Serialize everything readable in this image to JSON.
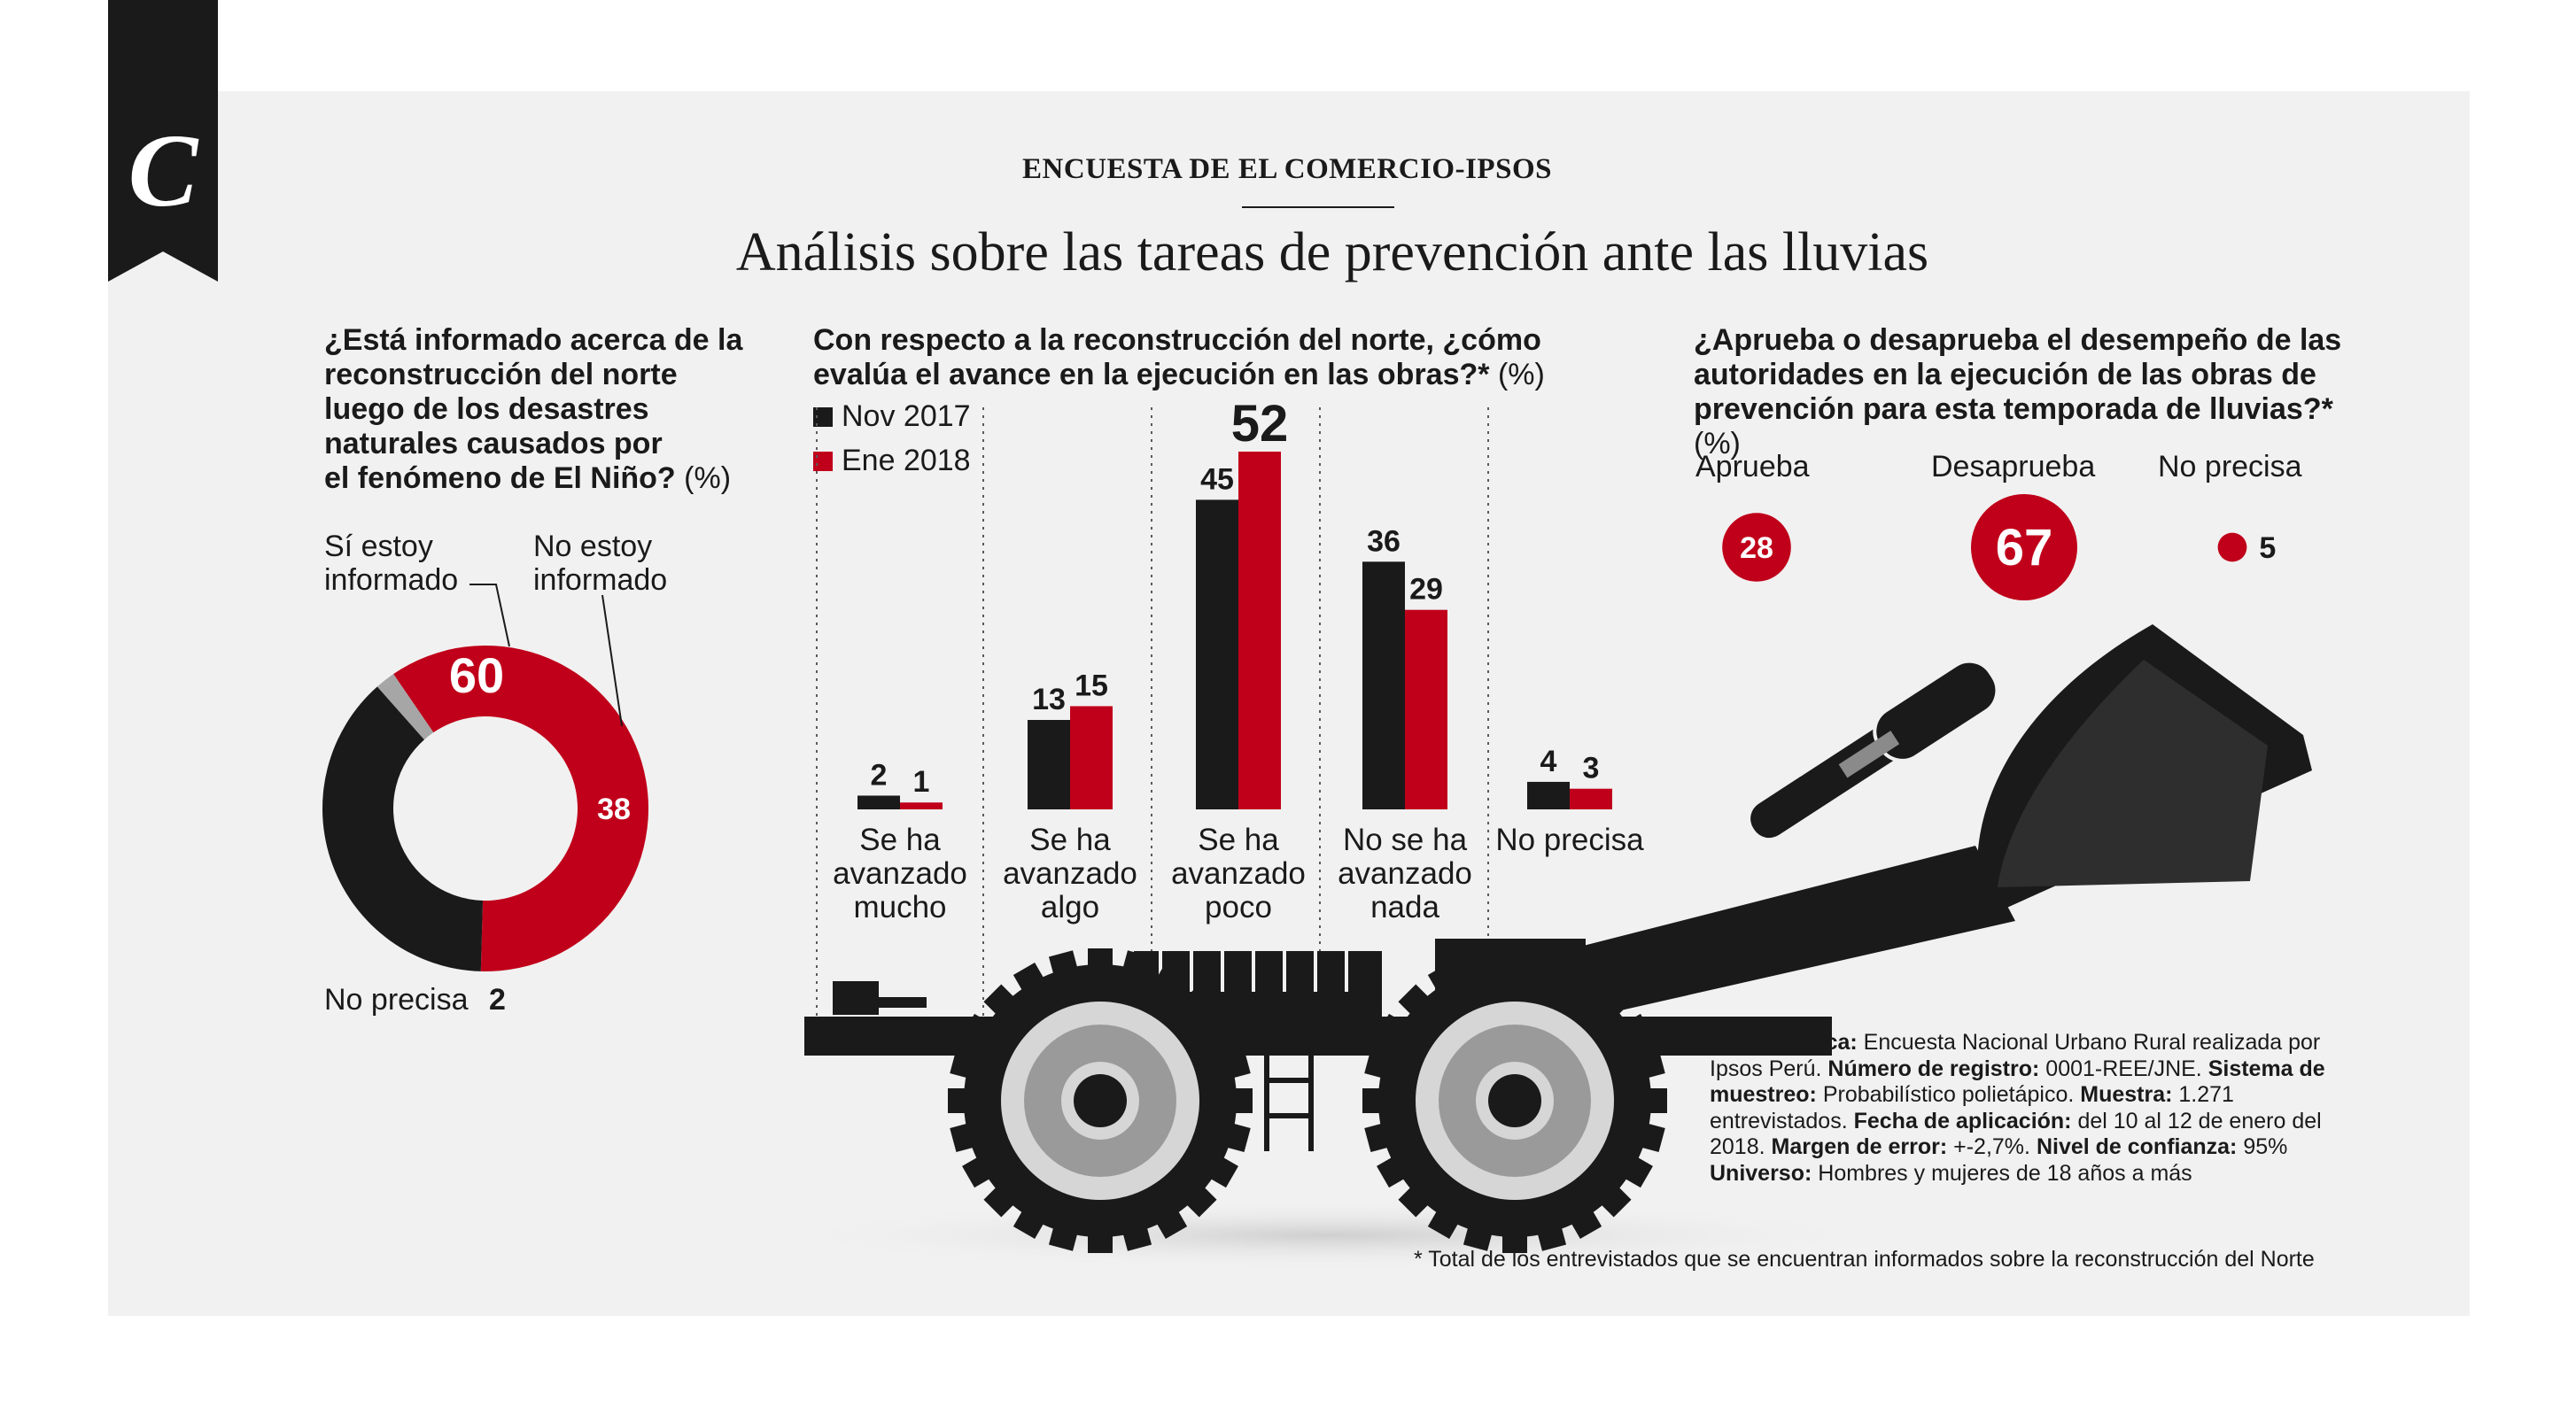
{
  "header": {
    "kicker": "ENCUESTA DE EL COMERCIO-IPSOS",
    "title": "Análisis sobre las tareas de prevención ante las lluvias",
    "logo_letter": "C"
  },
  "colors": {
    "red": "#c0001a",
    "black": "#1a1a1a",
    "gray": "#a6a6a6",
    "panel": "#f1f1f1"
  },
  "chart_data": [
    {
      "type": "pie",
      "title": "¿Está informado acerca de la reconstrucción del norte luego de los desastres naturales causados por el fenómeno de El Niño? (%)",
      "title_lines": [
        "¿Está informado acerca de la",
        "reconstrucción del norte",
        "luego de los desastres",
        "naturales causados por",
        "el fenómeno de El Niño?"
      ],
      "unit_label": "(%)",
      "slices": [
        {
          "label": "Sí estoy informado",
          "label_lines": [
            "Sí estoy",
            "informado"
          ],
          "value": 60,
          "color": "#c0001a"
        },
        {
          "label": "No estoy informado",
          "label_lines": [
            "No estoy",
            "informado"
          ],
          "value": 38,
          "color": "#1a1a1a"
        },
        {
          "label": "No precisa",
          "label_lines": [
            "No precisa"
          ],
          "value": 2,
          "color": "#a6a6a6"
        }
      ]
    },
    {
      "type": "bar",
      "title": "Con respecto a la reconstrucción del norte, ¿cómo evalúa el avance en la ejecución en las obras?* (%)",
      "title_lines": [
        "Con respecto a la reconstrucción del norte, ¿cómo",
        "evalúa el avance en la ejecución en las obras?*"
      ],
      "unit_label": "(%)",
      "categories": [
        "Se ha avanzado mucho",
        "Se ha avanzado algo",
        "Se ha avanzado poco",
        "No se ha avanzado nada",
        "No precisa"
      ],
      "category_lines": [
        [
          "Se ha",
          "avanzado",
          "mucho"
        ],
        [
          "Se ha",
          "avanzado",
          "algo"
        ],
        [
          "Se ha",
          "avanzado",
          "poco"
        ],
        [
          "No se ha",
          "avanzado",
          "nada"
        ],
        [
          "No precisa"
        ]
      ],
      "series": [
        {
          "name": "Nov 2017",
          "values": [
            2,
            13,
            45,
            36,
            4
          ],
          "color": "#1a1a1a"
        },
        {
          "name": "Ene 2018",
          "values": [
            1,
            15,
            52,
            29,
            3
          ],
          "color": "#c0001a"
        }
      ],
      "ylim": [
        0,
        52
      ]
    },
    {
      "type": "bubble",
      "title": "¿Aprueba o desaprueba el desempeño de las autoridades en la ejecución de las obras de prevención para esta temporada de lluvias?* (%)",
      "title_lines": [
        "¿Aprueba o desaprueba el desempeño de las",
        "autoridades en la ejecución de las obras de",
        "prevención para esta temporada de lluvias?*"
      ],
      "unit_label": "(%)",
      "categories": [
        "Aprueba",
        "Desaprueba",
        "No precisa"
      ],
      "values": [
        28,
        67,
        5
      ],
      "color": "#c0001a"
    }
  ],
  "ficha": {
    "ficha_label": "Ficha técnica:",
    "ficha_text": " Encuesta Nacional Urbano Rural realizada por Ipsos Perú. ",
    "registro_label": "Número de registro:",
    "registro_text": " 0001-REE/JNE. ",
    "muestreo_label": "Sistema de muestreo:",
    "muestreo_text": " Probabilístico polietápico. ",
    "muestra_label": "Muestra:",
    "muestra_text": " 1.271 entrevistados. ",
    "fecha_label": "Fecha de aplicación:",
    "fecha_text": " del 10 al 12 de enero del 2018. ",
    "margen_label": "Margen de error:",
    "margen_text": " +-2,7%. ",
    "confianza_label": "Nivel de confianza:",
    "confianza_text": " 95% ",
    "universo_label": "Universo:",
    "universo_text": " Hombres y mujeres de 18 años a más"
  },
  "footnote": "* Total de los entrevistados que se encuentran informados sobre la reconstrucción del Norte"
}
